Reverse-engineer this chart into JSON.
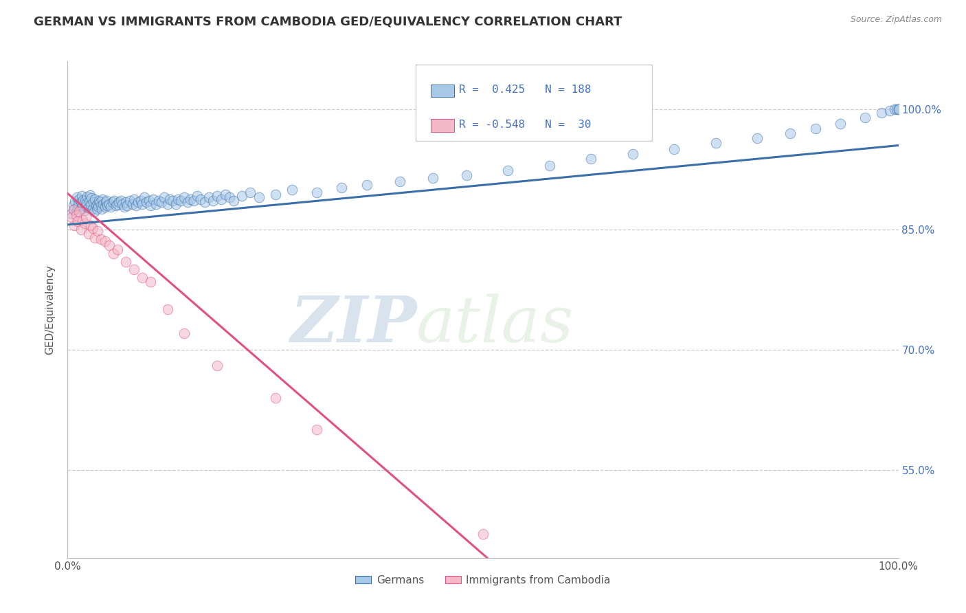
{
  "title": "GERMAN VS IMMIGRANTS FROM CAMBODIA GED/EQUIVALENCY CORRELATION CHART",
  "source": "Source: ZipAtlas.com",
  "ylabel": "GED/Equivalency",
  "r1": 0.425,
  "n1": 188,
  "r2": -0.548,
  "n2": 30,
  "xmin": 0.0,
  "xmax": 1.0,
  "ymin": 0.44,
  "ymax": 1.06,
  "yticks": [
    0.55,
    0.7,
    0.85,
    1.0
  ],
  "ytick_labels": [
    "55.0%",
    "70.0%",
    "85.0%",
    "100.0%"
  ],
  "xtick_labels": [
    "0.0%",
    "100.0%"
  ],
  "color_blue": "#a8c8e8",
  "color_pink": "#f4b8c8",
  "line_blue": "#3a6fa8",
  "line_pink": "#e05080",
  "watermark_zip": "ZIP",
  "watermark_atlas": "atlas",
  "legend_label1": "Germans",
  "legend_label2": "Immigrants from Cambodia",
  "blue_line_x0": 0.0,
  "blue_line_x1": 1.0,
  "blue_line_y0": 0.856,
  "blue_line_y1": 0.955,
  "pink_line_x0": 0.0,
  "pink_line_x1": 0.505,
  "pink_line_y0": 0.895,
  "pink_line_y1": 0.44,
  "blue_scatter_x": [
    0.005,
    0.007,
    0.008,
    0.009,
    0.01,
    0.011,
    0.012,
    0.013,
    0.014,
    0.015,
    0.016,
    0.017,
    0.018,
    0.019,
    0.02,
    0.021,
    0.022,
    0.023,
    0.024,
    0.025,
    0.026,
    0.027,
    0.028,
    0.029,
    0.03,
    0.031,
    0.032,
    0.033,
    0.034,
    0.035,
    0.036,
    0.037,
    0.038,
    0.039,
    0.04,
    0.041,
    0.042,
    0.043,
    0.045,
    0.046,
    0.047,
    0.048,
    0.05,
    0.052,
    0.054,
    0.056,
    0.058,
    0.06,
    0.062,
    0.064,
    0.066,
    0.068,
    0.07,
    0.072,
    0.075,
    0.078,
    0.08,
    0.082,
    0.085,
    0.088,
    0.09,
    0.092,
    0.095,
    0.098,
    0.1,
    0.103,
    0.106,
    0.11,
    0.113,
    0.116,
    0.12,
    0.123,
    0.126,
    0.13,
    0.133,
    0.136,
    0.14,
    0.144,
    0.148,
    0.152,
    0.156,
    0.16,
    0.165,
    0.17,
    0.175,
    0.18,
    0.185,
    0.19,
    0.195,
    0.2,
    0.21,
    0.22,
    0.23,
    0.25,
    0.27,
    0.3,
    0.33,
    0.36,
    0.4,
    0.44,
    0.48,
    0.53,
    0.58,
    0.63,
    0.68,
    0.73,
    0.78,
    0.83,
    0.87,
    0.9,
    0.93,
    0.96,
    0.98,
    0.99,
    0.995,
    0.998,
    1.0,
    1.0,
    1.0
  ],
  "blue_scatter_y": [
    0.87,
    0.88,
    0.875,
    0.885,
    0.872,
    0.89,
    0.878,
    0.882,
    0.888,
    0.876,
    0.884,
    0.892,
    0.88,
    0.887,
    0.874,
    0.886,
    0.879,
    0.883,
    0.891,
    0.877,
    0.885,
    0.893,
    0.881,
    0.889,
    0.876,
    0.884,
    0.872,
    0.888,
    0.88,
    0.876,
    0.882,
    0.878,
    0.886,
    0.884,
    0.88,
    0.876,
    0.888,
    0.882,
    0.878,
    0.884,
    0.886,
    0.88,
    0.882,
    0.878,
    0.884,
    0.886,
    0.88,
    0.882,
    0.884,
    0.886,
    0.882,
    0.878,
    0.884,
    0.88,
    0.886,
    0.882,
    0.888,
    0.88,
    0.884,
    0.886,
    0.882,
    0.89,
    0.884,
    0.886,
    0.88,
    0.888,
    0.882,
    0.886,
    0.884,
    0.89,
    0.882,
    0.888,
    0.886,
    0.882,
    0.888,
    0.886,
    0.89,
    0.884,
    0.888,
    0.886,
    0.892,
    0.888,
    0.884,
    0.89,
    0.886,
    0.892,
    0.888,
    0.894,
    0.89,
    0.886,
    0.892,
    0.896,
    0.89,
    0.894,
    0.9,
    0.896,
    0.902,
    0.906,
    0.91,
    0.914,
    0.918,
    0.924,
    0.93,
    0.938,
    0.944,
    0.95,
    0.958,
    0.964,
    0.97,
    0.976,
    0.982,
    0.99,
    0.996,
    0.998,
    1.0,
    1.0,
    1.0,
    1.0,
    1.0
  ],
  "pink_scatter_x": [
    0.005,
    0.007,
    0.008,
    0.01,
    0.012,
    0.014,
    0.016,
    0.018,
    0.02,
    0.022,
    0.025,
    0.028,
    0.03,
    0.033,
    0.036,
    0.04,
    0.045,
    0.05,
    0.055,
    0.06,
    0.07,
    0.08,
    0.09,
    0.1,
    0.12,
    0.14,
    0.18,
    0.25,
    0.3,
    0.5
  ],
  "pink_scatter_y": [
    0.865,
    0.875,
    0.855,
    0.868,
    0.86,
    0.872,
    0.85,
    0.862,
    0.858,
    0.865,
    0.845,
    0.855,
    0.852,
    0.84,
    0.848,
    0.838,
    0.835,
    0.83,
    0.82,
    0.825,
    0.81,
    0.8,
    0.79,
    0.785,
    0.75,
    0.72,
    0.68,
    0.64,
    0.6,
    0.47
  ]
}
